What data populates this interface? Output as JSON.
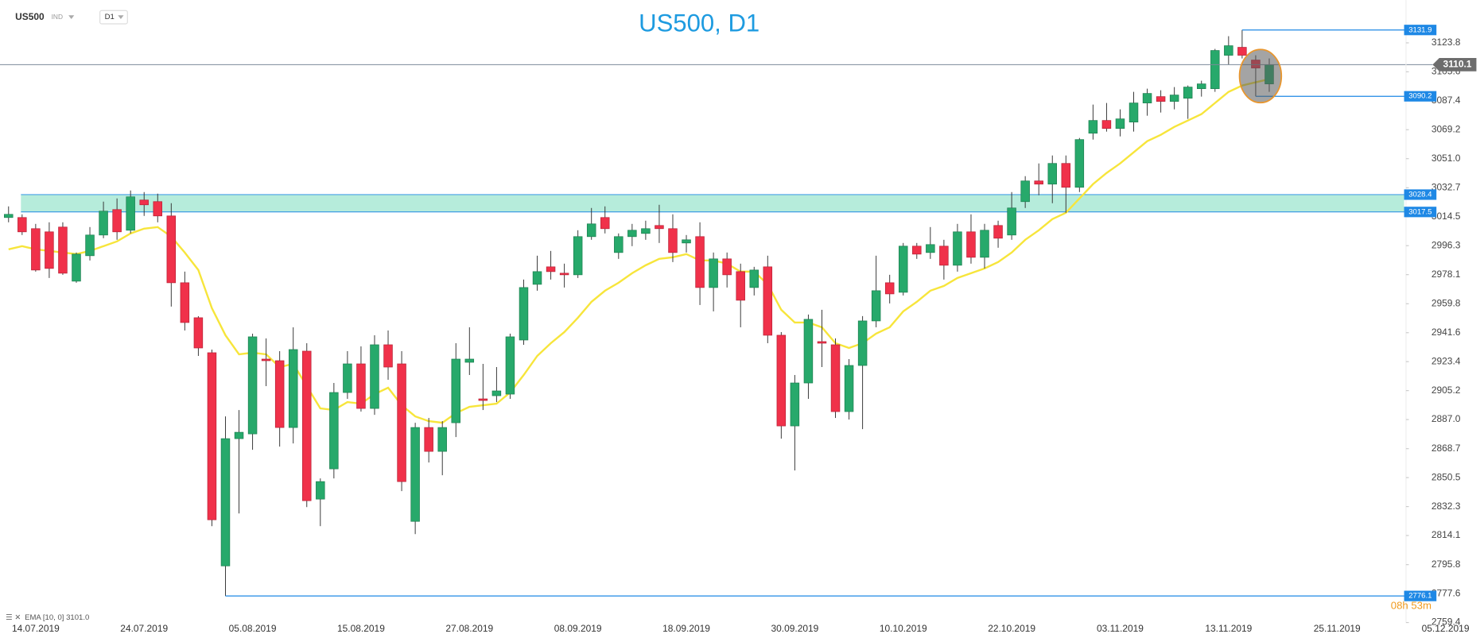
{
  "chart_data": {
    "type": "candlestick",
    "title": "US500, D1",
    "symbol": "US500",
    "symbol_type": "IND",
    "timeframe": "D1",
    "countdown": "08h 53m",
    "categories": [
      null,
      null,
      "14.07.2019",
      null,
      null,
      null,
      null,
      null,
      null,
      null,
      "24.07.2019",
      null,
      null,
      null,
      null,
      null,
      null,
      null,
      "05.08.2019",
      null,
      null,
      null,
      null,
      null,
      null,
      null,
      "15.08.2019",
      null,
      null,
      null,
      null,
      null,
      null,
      null,
      "27.08.2019",
      null,
      null,
      null,
      null,
      null,
      null,
      null,
      "08.09.2019",
      null,
      null,
      null,
      null,
      null,
      null,
      null,
      "18.09.2019",
      null,
      null,
      null,
      null,
      null,
      null,
      null,
      "30.09.2019",
      null,
      null,
      null,
      null,
      null,
      null,
      null,
      "10.10.2019",
      null,
      null,
      null,
      null,
      null,
      null,
      null,
      "22.10.2019",
      null,
      null,
      null,
      null,
      null,
      null,
      null,
      "03.11.2019",
      null,
      null,
      null,
      null,
      null,
      null,
      null,
      "13.11.2019",
      null,
      null,
      null,
      null,
      null,
      null,
      null,
      "25.11.2019",
      null,
      null,
      null,
      null,
      null,
      null,
      null,
      "05.12.2019"
    ],
    "open": [
      3014,
      3014,
      3007,
      3005,
      3008,
      2974,
      2990,
      3003,
      3019,
      3006,
      3025,
      3024,
      3015,
      2973,
      2951,
      2929,
      2795,
      2875,
      2878,
      2925,
      2924,
      2882,
      2930,
      2837,
      2856,
      2904,
      2922,
      2894,
      2934,
      2922,
      2823,
      2882,
      2867,
      2885,
      2923,
      2900,
      2902,
      2903,
      2937,
      2972,
      2983,
      2979,
      2978,
      3002,
      3014,
      2992,
      3002,
      3004,
      3009,
      3007,
      2998,
      3002,
      2970,
      2988,
      2980,
      2970,
      2983,
      2940,
      2883,
      2910,
      2936,
      2934,
      2892,
      2921,
      2949,
      2973,
      2967,
      2996,
      2992,
      2996,
      2984,
      3005,
      2989,
      3009,
      3003,
      3024,
      3037,
      3035,
      3048,
      3033,
      3067,
      3075,
      3070,
      3074,
      3086,
      3090,
      3087,
      3089,
      3095,
      3095,
      3116,
      3121,
      3113,
      3098,
      null,
      null,
      null,
      null,
      null,
      null,
      null,
      null,
      null,
      null,
      null,
      null,
      null
    ],
    "high": [
      3021,
      3016,
      3010,
      3011,
      3011,
      2992,
      3008,
      3024,
      3026,
      3031,
      3030,
      3029,
      3023,
      2980,
      2952,
      2931,
      2889,
      2893,
      2941,
      2938,
      2930,
      2945,
      2935,
      2850,
      2910,
      2930,
      2933,
      2940,
      2943,
      2930,
      2885,
      2888,
      2886,
      2935,
      2945,
      2922,
      2920,
      2941,
      2975,
      2990,
      2993,
      2985,
      3006,
      3020,
      3021,
      3004,
      3010,
      3012,
      3022,
      3016,
      3003,
      3011,
      2992,
      2992,
      2985,
      2983,
      2990,
      2942,
      2915,
      2953,
      2956,
      2938,
      2925,
      2952,
      2990,
      2978,
      2998,
      2998,
      3008,
      3000,
      3010,
      3016,
      3010,
      3012,
      3030,
      3040,
      3048,
      3053,
      3053,
      3064,
      3085,
      3086,
      3082,
      3093,
      3095,
      3094,
      3096,
      3097,
      3100,
      3120,
      3128,
      3131.9,
      3116,
      3114,
      null,
      null,
      null,
      null,
      null,
      null,
      null,
      null,
      null,
      null,
      null,
      null,
      null
    ],
    "low": [
      3011,
      3003,
      2980,
      2976,
      2978,
      2973,
      2987,
      3001,
      3000,
      3004,
      3015,
      3011,
      2958,
      2943,
      2927,
      2820,
      2776.1,
      2828,
      2868,
      2908,
      2870,
      2872,
      2832,
      2820,
      2850,
      2900,
      2892,
      2890,
      2912,
      2842,
      2815,
      2860,
      2852,
      2876,
      2915,
      2893,
      2898,
      2900,
      2934,
      2968,
      2975,
      2970,
      2976,
      3000,
      3004,
      2988,
      2996,
      3000,
      2998,
      2986,
      2992,
      2959,
      2955,
      2970,
      2945,
      2965,
      2935,
      2875,
      2855,
      2900,
      2920,
      2888,
      2887,
      2881,
      2945,
      2960,
      2965,
      2988,
      2988,
      2975,
      2980,
      2985,
      2982,
      2995,
      3000,
      3020,
      3028,
      3023,
      3017,
      3030,
      3063,
      3068,
      3065,
      3068,
      3078,
      3080,
      3082,
      3076,
      3090,
      3093,
      3110,
      3114,
      3090.2,
      3093,
      null,
      null,
      null,
      null,
      null,
      null,
      null,
      null,
      null,
      null,
      null,
      null,
      null
    ],
    "close": [
      3016,
      3005,
      2981,
      2982,
      2979,
      2991,
      3003,
      3018,
      3005,
      3027,
      3022,
      3015,
      2973,
      2948,
      2932,
      2824,
      2875,
      2879,
      2939,
      2924,
      2882,
      2931,
      2836,
      2848,
      2904,
      2922,
      2894,
      2934,
      2920,
      2848,
      2882,
      2867,
      2882,
      2925,
      2925,
      2899,
      2905,
      2939,
      2970,
      2980,
      2980,
      2978,
      3002,
      3010,
      3007,
      3002,
      3006,
      3007,
      3007,
      2992,
      3000,
      2970,
      2988,
      2978,
      2962,
      2981,
      2940,
      2883,
      2910,
      2950,
      2935,
      2892,
      2921,
      2949,
      2968,
      2966,
      2996,
      2991,
      2997,
      2984,
      3005,
      2989,
      3006,
      3001,
      3020,
      3037,
      3035,
      3048,
      3033,
      3063,
      3075,
      3070,
      3076,
      3086,
      3092,
      3087,
      3091,
      3096,
      3098,
      3119,
      3122,
      3116,
      3108,
      3110.1,
      null,
      null,
      null,
      null,
      null,
      null,
      null,
      null,
      null,
      null,
      null,
      null,
      null
    ],
    "colors": {
      "up": "#27a96b",
      "down": "#f0314a"
    },
    "ema": {
      "label": "EMA [10, 0] 3101.0",
      "color": "#f7e53b",
      "values": [
        2994,
        2996,
        2994,
        2993,
        2992,
        2991,
        2993,
        2996,
        2999,
        3004,
        3007,
        3008,
        3002,
        2992,
        2981,
        2957,
        2940,
        2928,
        2929,
        2928,
        2920,
        2922,
        2908,
        2894,
        2893,
        2898,
        2897,
        2903,
        2907,
        2896,
        2889,
        2886,
        2885,
        2891,
        2895,
        2896,
        2897,
        2904,
        2915,
        2927,
        2935,
        2942,
        2951,
        2961,
        2968,
        2973,
        2979,
        2984,
        2988,
        2989,
        2991,
        2987,
        2987,
        2985,
        2980,
        2980,
        2972,
        2956,
        2948,
        2948,
        2945,
        2935,
        2932,
        2935,
        2941,
        2945,
        2955,
        2961,
        2968,
        2971,
        2976,
        2979,
        2982,
        2986,
        2992,
        3000,
        3006,
        3013,
        3017,
        3026,
        3035,
        3042,
        3048,
        3055,
        3062,
        3066,
        3071,
        3075,
        3079,
        3086,
        3093,
        3097,
        3099,
        3101,
        null,
        null,
        null,
        null,
        null,
        null,
        null,
        null,
        null,
        null,
        null,
        null,
        null
      ]
    },
    "ylim": [
      2759.4,
      3150.7
    ],
    "yticks": [
      3123.8,
      3105.6,
      3087.4,
      3069.2,
      {
        "value": 3051,
        "label": "3051.0"
      },
      3032.7,
      3014.5,
      2996.3,
      2978.1,
      2959.8,
      2941.6,
      2923.4,
      2905.2,
      {
        "value": 2887,
        "label": "2887.0"
      },
      2868.7,
      2850.5,
      2832.3,
      2814.1,
      2795.8,
      2777.6,
      2759.4
    ],
    "zone": [
      3017.5,
      3028.4
    ],
    "levels": [
      3131.9,
      3090.2,
      2776.1
    ],
    "last_price": 3110.1
  }
}
